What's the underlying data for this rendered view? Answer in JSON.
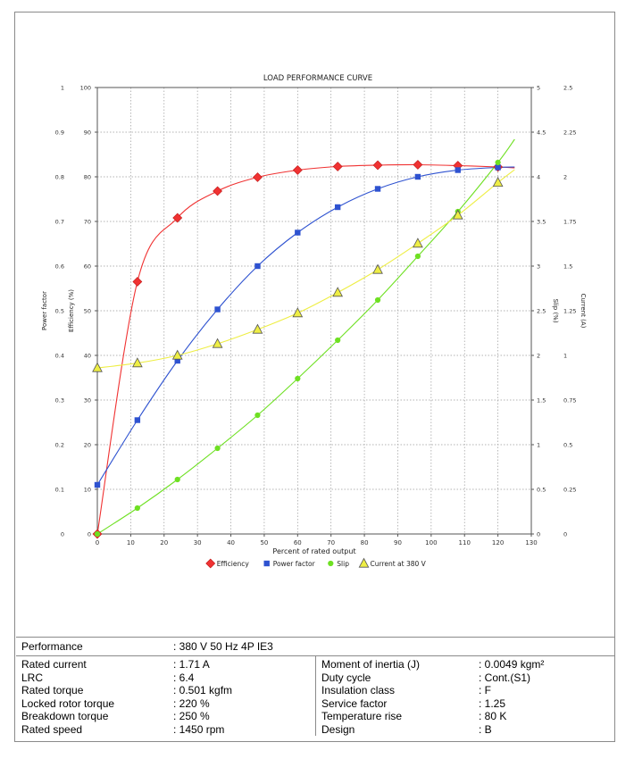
{
  "chart_data": {
    "type": "line",
    "title": "LOAD PERFORMANCE CURVE",
    "xlabel": "Percent of rated output",
    "xlim": [
      0,
      130
    ],
    "x_ticks": [
      "0",
      "10",
      "20",
      "30",
      "40",
      "50",
      "60",
      "70",
      "80",
      "90",
      "100",
      "110",
      "120",
      "130"
    ],
    "y_axes": [
      {
        "id": "pf",
        "label": "Power factor",
        "side": "left-outer",
        "ylim": [
          0,
          1
        ],
        "ticks": [
          "0",
          "0.1",
          "0.2",
          "0.3",
          "0.4",
          "0.5",
          "0.6",
          "0.7",
          "0.8",
          "0.9",
          "1"
        ]
      },
      {
        "id": "eff",
        "label": "Efficiency (%)",
        "side": "left-inner",
        "ylim": [
          0,
          100
        ],
        "ticks": [
          "0",
          "10",
          "20",
          "30",
          "40",
          "50",
          "60",
          "70",
          "80",
          "90",
          "100"
        ]
      },
      {
        "id": "slip",
        "label": "Slip (%)",
        "side": "right-inner",
        "ylim": [
          0,
          5
        ],
        "ticks": [
          "0",
          "0.5",
          "1",
          "1.5",
          "2",
          "2.5",
          "3",
          "3.5",
          "4",
          "4.5",
          "5"
        ]
      },
      {
        "id": "cur",
        "label": "Current (A)",
        "side": "right-outer",
        "ylim": [
          0,
          2.5
        ],
        "ticks": [
          "0",
          "0.25",
          "0.5",
          "0.75",
          "1",
          "1.25",
          "1.5",
          "1.75",
          "2",
          "2.25",
          "2.5"
        ]
      }
    ],
    "grid": true,
    "legend_position": "bottom",
    "series": [
      {
        "name": "Efficiency",
        "axis": "pfscale_eff",
        "y_axis": "eff",
        "color": "#f03232",
        "marker": "diamond",
        "x": [
          0,
          12,
          24,
          36,
          48,
          60,
          72,
          84,
          96,
          108,
          120
        ],
        "values": [
          0,
          56.5,
          70.8,
          76.8,
          79.9,
          81.5,
          82.3,
          82.6,
          82.7,
          82.5,
          82.2
        ],
        "curve_end_x": 125,
        "curve_end_y": 82.0
      },
      {
        "name": "Power factor",
        "y_axis": "pf",
        "color": "#2e52d0",
        "marker": "square",
        "x": [
          0,
          12,
          24,
          36,
          48,
          60,
          72,
          84,
          96,
          108,
          120
        ],
        "values": [
          0.11,
          0.255,
          0.388,
          0.503,
          0.6,
          0.675,
          0.732,
          0.773,
          0.8,
          0.815,
          0.821
        ],
        "curve_end_x": 125,
        "curve_end_y": 0.822
      },
      {
        "name": "Slip",
        "y_axis": "slip",
        "color": "#6ee022",
        "marker": "circle",
        "x": [
          0,
          12,
          24,
          36,
          48,
          60,
          72,
          84,
          96,
          108,
          120
        ],
        "values": [
          0,
          0.29,
          0.61,
          0.96,
          1.33,
          1.74,
          2.17,
          2.62,
          3.11,
          3.61,
          4.16
        ],
        "curve_end_x": 125,
        "curve_end_y": 4.42
      },
      {
        "name": "Current at 380 V",
        "y_axis": "cur",
        "color": "#eeee44",
        "marker": "triangle",
        "x": [
          0,
          12,
          24,
          36,
          48,
          60,
          72,
          84,
          96,
          108,
          120
        ],
        "values": [
          0.93,
          0.957,
          1.0,
          1.065,
          1.145,
          1.237,
          1.352,
          1.48,
          1.627,
          1.785,
          1.968
        ],
        "curve_end_x": 125,
        "curve_end_y": 2.04
      }
    ]
  },
  "performance": {
    "label": "Performance",
    "value": ": 380 V 50 Hz 4P IE3"
  },
  "specs_left": [
    {
      "label": "Rated current",
      "value": ": 1.71 A"
    },
    {
      "label": "LRC",
      "value": ": 6.4"
    },
    {
      "label": "Rated torque",
      "value": ": 0.501 kgfm"
    },
    {
      "label": "Locked rotor torque",
      "value": ": 220 %"
    },
    {
      "label": "Breakdown torque",
      "value": ": 250 %"
    },
    {
      "label": "Rated speed",
      "value": ": 1450 rpm"
    }
  ],
  "specs_right": [
    {
      "label": "Moment of inertia (J)",
      "value": ": 0.0049 kgm²"
    },
    {
      "label": "Duty cycle",
      "value": ": Cont.(S1)"
    },
    {
      "label": "Insulation class",
      "value": ": F"
    },
    {
      "label": "Service factor",
      "value": ": 1.25"
    },
    {
      "label": "Temperature rise",
      "value": ": 80 K"
    },
    {
      "label": "Design",
      "value": ": B"
    }
  ]
}
